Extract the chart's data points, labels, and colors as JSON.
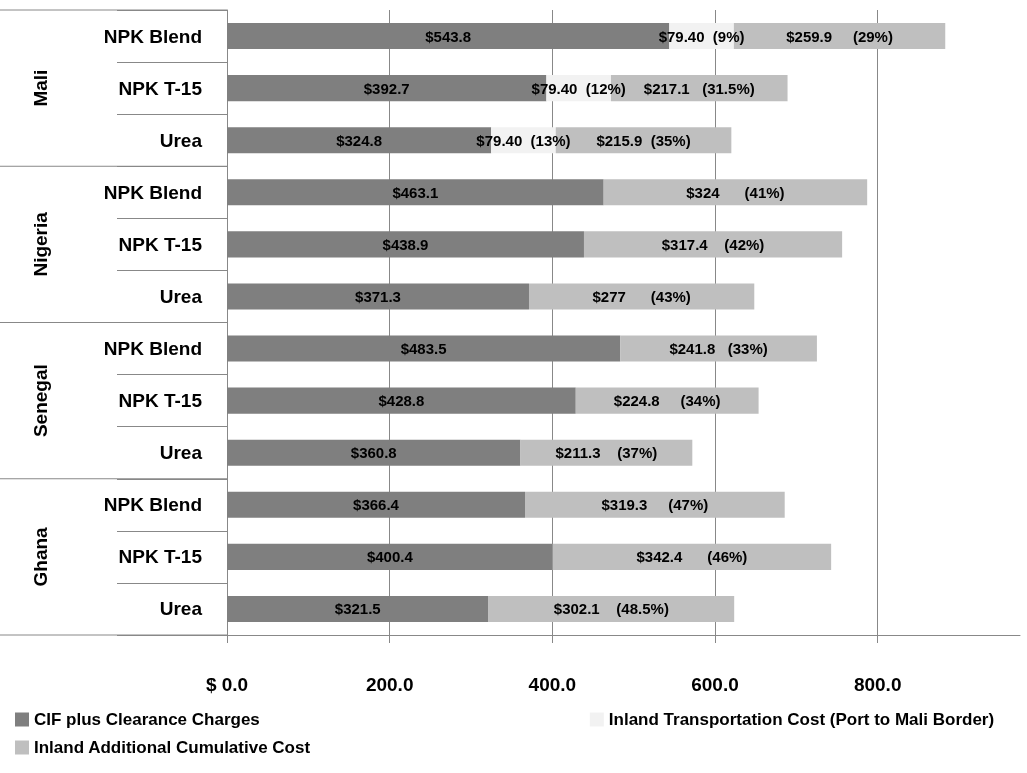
{
  "chart_data": {
    "type": "bar",
    "orientation": "horizontal",
    "stacked": true,
    "categories": [
      "NPK Blend",
      "NPK T-15",
      "Urea",
      "NPK Blend",
      "NPK T-15",
      "Urea",
      "NPK Blend",
      "NPK T-15",
      "Urea",
      "NPK Blend",
      "NPK T-15",
      "Urea"
    ],
    "annotations": [
      "Mali",
      "Nigeria",
      "Senegal",
      "Ghana"
    ],
    "series": [
      {
        "name": "CIF plus Clearance Charges",
        "color": "#7f7f7f",
        "values": [
          543.8,
          392.7,
          324.8,
          463.1,
          438.9,
          371.3,
          483.5,
          428.8,
          360.8,
          366.4,
          400.4,
          321.5
        ],
        "value_labels": [
          "$543.8",
          "$392.7",
          "$324.8",
          "$463.1",
          "$438.9",
          "$371.3",
          "$483.5",
          "$428.8",
          "$360.8",
          "$366.4",
          "$400.4",
          "$321.5"
        ]
      },
      {
        "name": "Inland Transportation Cost (Port to Mali Border)",
        "color": "#f2f2f2",
        "values": [
          79.4,
          79.4,
          79.4,
          null,
          null,
          null,
          null,
          null,
          null,
          null,
          null,
          null
        ],
        "value_labels": [
          "$79.40  (9%)",
          "$79.40  (12%)",
          "$79.40  (13%)",
          null,
          null,
          null,
          null,
          null,
          null,
          null,
          null,
          null
        ]
      },
      {
        "name": "Inland Additional Cumulative Cost",
        "color": "#bfbfbf",
        "values": [
          259.9,
          217.1,
          215.9,
          324,
          317.4,
          277,
          241.8,
          224.8,
          211.3,
          319.3,
          342.4,
          302.1
        ],
        "value_labels": [
          "$259.9     (29%)",
          "$217.1   (31.5%)",
          "$215.9  (35%)",
          "$324      (41%)",
          "$317.4    (42%)",
          "$277      (43%)",
          "$241.8   (33%)",
          "$224.8     (34%)",
          "$211.3    (37%)",
          "$319.3     (47%)",
          "$342.4      (46%)",
          "$302.1    (48.5%)"
        ]
      }
    ],
    "xlim": [
      0,
      975
    ],
    "xticks": [
      {
        "value": 0,
        "label": "$ 0.0"
      },
      {
        "value": 200,
        "label": "200.0"
      },
      {
        "value": 400,
        "label": "400.0"
      },
      {
        "value": 600,
        "label": "600.0"
      },
      {
        "value": 800,
        "label": "800.0"
      }
    ],
    "grid": "x",
    "legend": "bottom"
  }
}
